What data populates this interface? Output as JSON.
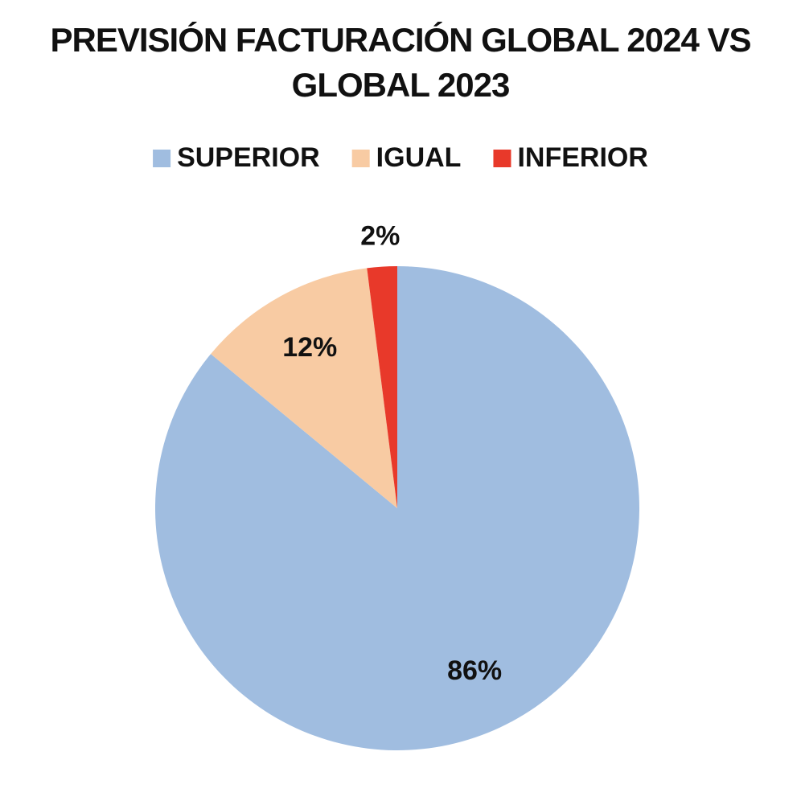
{
  "chart_data": {
    "type": "pie",
    "title": "PREVISIÓN FACTURACIÓN GLOBAL 2024 VS GLOBAL 2023",
    "categories": [
      "SUPERIOR",
      "IGUAL",
      "INFERIOR"
    ],
    "values": [
      86,
      12,
      2
    ],
    "value_labels": [
      "86%",
      "12%",
      "2%"
    ],
    "colors": [
      "#a0bde0",
      "#f8cba3",
      "#e8392a"
    ],
    "legend": "top"
  }
}
